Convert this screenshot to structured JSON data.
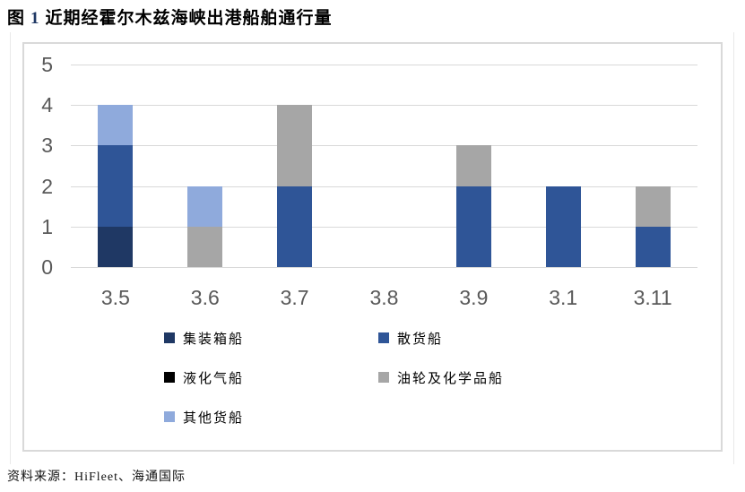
{
  "page": {
    "title": {
      "prefix": "图",
      "number": "1",
      "text": "近期经霍尔木兹海峡出港船舶通行量"
    },
    "source": "资料来源：HiFleet、海通国际"
  },
  "colors": {
    "title_number": "#1F3864",
    "axis_text": "#595959",
    "gridline": "#D9D9D9",
    "frame_border": "#D9D9D9"
  },
  "chart_data": {
    "type": "bar",
    "stacked": true,
    "title": "近期经霍尔木兹海峡出港船舶通行量",
    "categories": [
      "3.5",
      "3.6",
      "3.7",
      "3.8",
      "3.9",
      "3.1",
      "3.11"
    ],
    "series": [
      {
        "name": "集装箱船",
        "color": "#1F3864",
        "values": [
          1,
          0,
          0,
          0,
          0,
          0,
          0
        ]
      },
      {
        "name": "散货船",
        "color": "#2F5597",
        "values": [
          2,
          0,
          2,
          0,
          2,
          2,
          1
        ]
      },
      {
        "name": "液化气船",
        "color": "#000000",
        "values": [
          0,
          0,
          0,
          0,
          0,
          0,
          0
        ]
      },
      {
        "name": "油轮及化学品船",
        "color": "#A6A6A6",
        "values": [
          0,
          1,
          2,
          0,
          1,
          0,
          1
        ]
      },
      {
        "name": "其他货船",
        "color": "#8FAADC",
        "values": [
          1,
          1,
          0,
          0,
          0,
          0,
          0
        ]
      }
    ],
    "xlabel": "",
    "ylabel": "",
    "ylim": [
      0,
      5
    ],
    "yticks": [
      0,
      1,
      2,
      3,
      4,
      5
    ],
    "grid": true,
    "legend_position": "bottom-inside",
    "legend_columns": 2
  }
}
